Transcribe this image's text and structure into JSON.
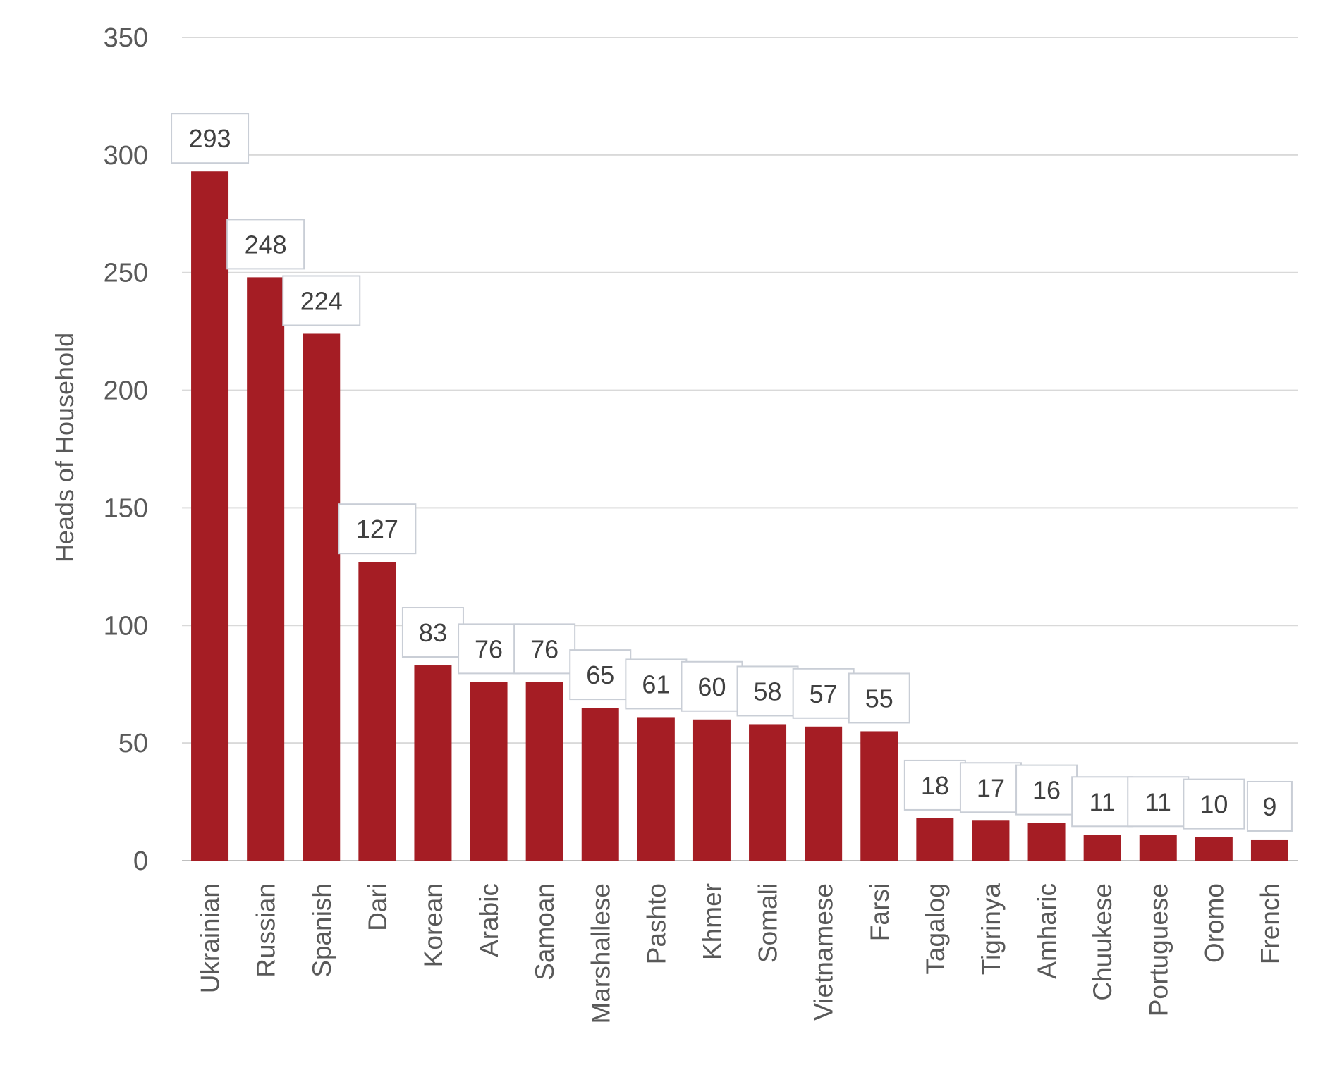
{
  "chart_data": {
    "type": "bar",
    "title": "",
    "xlabel": "",
    "ylabel": "Heads of Household",
    "ylim": [
      0,
      350
    ],
    "yticks": [
      0,
      50,
      100,
      150,
      200,
      250,
      300,
      350
    ],
    "grid": true,
    "legend": "none",
    "bar_color": "#a51d24",
    "categories": [
      "Ukrainian",
      "Russian",
      "Spanish",
      "Dari",
      "Korean",
      "Arabic",
      "Samoan",
      "Marshallese",
      "Pashto",
      "Khmer",
      "Somali",
      "Vietnamese",
      "Farsi",
      "Tagalog",
      "Tigrinya",
      "Amharic",
      "Chuukese",
      "Portuguese",
      "Oromo",
      "French"
    ],
    "values": [
      293,
      248,
      224,
      127,
      83,
      76,
      76,
      65,
      61,
      60,
      58,
      57,
      55,
      18,
      17,
      16,
      11,
      11,
      10,
      9
    ]
  }
}
